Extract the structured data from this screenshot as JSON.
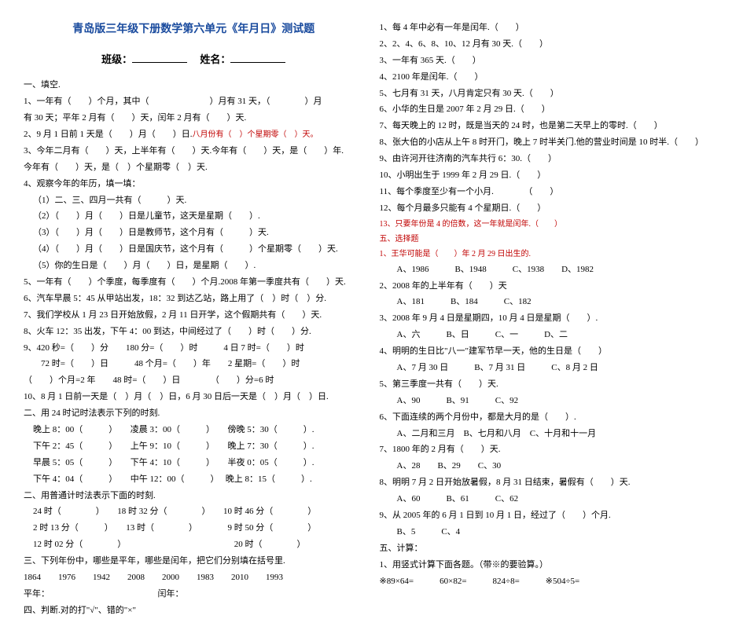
{
  "header": {
    "title": "青岛版三年级下册数学第六单元《年月日》测试题",
    "class_label": "班级：",
    "name_label": "姓名："
  },
  "sec1": {
    "h": "一、填空.",
    "l1a": "1、一年有（　　）个月，其中（",
    "l1b": "）月有 31 天，（",
    "l1c": "）月",
    "l1d": "有 30 天；平年 2 月有（　　）天，闰年 2 月有（　　）天.",
    "l2": "2、9 月 1 日前 1 天是（　　）月（　　）日.",
    "l2b": "八月份有（　）个星期零（　）天。",
    "l3a": "3、今年二月有（　　）天，上半年有（　　）天.今年有（　　）天，是（　　）年.",
    "l3b": "今年有（　　）天，是（　）个星期零（　）天.",
    "l4h": "4、观察今年的年历，填一填：",
    "l4_1": "（1）二、三、四月一共有（　　　）天.",
    "l4_2": "（2）（　　）月（　　）日是儿童节，这天是星期（　　）.",
    "l4_3": "（3）（　　）月（　　）日是教师节，这个月有（　　　）天.",
    "l4_4": "（4）（　　）月（　　）日是国庆节，这个月有（　　　）个星期零（　　）天.",
    "l4_5": "（5）你的生日是（　　）月（　　）日，是星期（　　）.",
    "l5": "5、一年有（　　）个季度，每季度有（　　）个月.2008 年第一季度共有（　　）天.",
    "l6": "6、汽车早晨 5：45 从甲站出发，18：32 到达乙站，路上用了（　）时（　）分.",
    "l7": "7、我们学校从 1 月 23 日开始放假，2 月 11 日开学，这个假期共有（　　）天.",
    "l8": "8、火车 12：35 出发，下午 4：00 到达，中间经过了（　　）时（　　）分.",
    "l9a": "9、420 秒=（　　）分　　180 分=（　　）时　　　4 日 7 时=（　　）时",
    "l9b": "　　72 时=（　　）日　　　48 个月=（　　）年　　2 星期=（　　）时",
    "l9c": "（　　）个月=2 年　　48 时=（　　）日　　　　（　　）分=6 时",
    "l10": "10、8 月 1 日前一天是（　）月（　）日，6 月 30 日后一天是（　）月（　）日.",
    "l11h": "二、用 24 时记时法表示下列的时刻.",
    "l11a": "晚上 8：00（　　　）　　凌晨 3：00（　　　）　　傍晚 5：30（　　　）.",
    "l11b": "下午 2：45（　　　）　　上午 9：10（　　　）　　晚上 7：30（　　　）.",
    "l11c": "早晨 5：05（　　　）　　下午 4：10（　　　）　　半夜 0：05（　　　）.",
    "l11d": "下午 4：04（　　　）　　中午 12：00（　　　）　 晚上 8：15（　　　）.",
    "l12h": "二、用普通计时法表示下面的时刻.",
    "l12a": "24 时（　　　　）　　18 时 32 分（　　　　）　　10 时 46 分（　　　　）",
    "l12b": "2 时 13 分（　　　）　　13 时（　　　　）　　　　9 时 50 分（　　　　）",
    "l12c": "12 时 02 分（　　　　）　　　　　　　　　　　　　20 时（　　　　）",
    "l13h": "三、下列年份中，哪些是平年，哪些是闰年，把它们分别填在括号里.",
    "l13a": "1864　　1976　　1942　　2008　　2000　　1983　　2010　　1993",
    "l13b": "平年：　　　　　　　　　　　　　闰年：",
    "l14h": "四、判断.对的打\"√\"、错的\"×\""
  },
  "sec2": {
    "j1": "1、每 4 年中必有一年是闰年.（　　）",
    "j2": "2、2、4、6、8、10、12 月有 30 天.（　　）",
    "j3": "3、一年有 365 天.（　　）",
    "j4": "4、2100 年是闰年.（　　）",
    "j5": "5、七月有 31 天，八月肯定只有 30 天.（　　）",
    "j6": "6、小华的生日是 2007 年 2 月 29 日.（　　）",
    "j7": "7、每天晚上的 12 时，既是当天的 24 时，也是第二天早上的零时.（　　）",
    "j8": "8、张大伯的小店从上午 8 时开门，晚上 7 时半关门.他的营业时间是 10 时半.（　　）",
    "j9": "9、由许河开往济南的汽车共行 6：30.（　　）",
    "j10": "10、小明出生于 1999 年 2 月 29 日.（　　）",
    "j11": "11、每个季度至少有一个小月.　　　　（　　）",
    "j12": "12、每个月最多只能有 4 个星期日.（　　）",
    "j13": "13、只要年份是 4 的倍数，这一年就是闰年.（　　）",
    "s5h": "五、选择题",
    "c1": "1、王华可能是（　　）年 2 月 29 日出生的.",
    "c1o": "　　A、1986　　　B、1948　　　C、1938　　D、1982",
    "c2": "2、2008 年的上半年有（　　）天",
    "c2o": "　　A、181　　　B、184　　　C、182",
    "c3": "3、2008 年 9 月 4 日是星期四，10 月 4 日是星期（　　）.",
    "c3o": "　　A、六　　　B、日　　　C、一　　　D、二",
    "c4": "4、明明的生日比\"八一\"建军节早一天，他的生日是（　　）",
    "c4o": "　　A、7 月 30 日　　　B、7 月 31 日　　　C、8 月 2 日",
    "c5": "5、第三季度一共有（　　）天.",
    "c5o": "　　A、90　　　B、91　　　C、92",
    "c6": "6、下面连续的两个月份中，都是大月的是（　　）.",
    "c6o": "　　A、二月和三月　B、七月和八月　C、十月和十一月",
    "c7": "7、1800 年的 2 月有（　　）天.",
    "c7o": "　　A、28　　B、29　　C、30",
    "c8": "8、明明 7 月 2 日开始放暑假，8 月 31 日结束，暑假有（　　）天.",
    "c8o": "　　A、60　　　B、61　　　C、62",
    "c9": "9、从 2005 年的 6 月 1 日到 10 月 1 日，经过了（　　）个月.",
    "c9o": "　　B、5　　　C、4",
    "s6h": "五、计算：",
    "c10": "1、用竖式计算下面各题。（带※的要验算。）",
    "c10o": "※89×64=　　　60×82=　　　824÷8=　　　※504÷5="
  }
}
